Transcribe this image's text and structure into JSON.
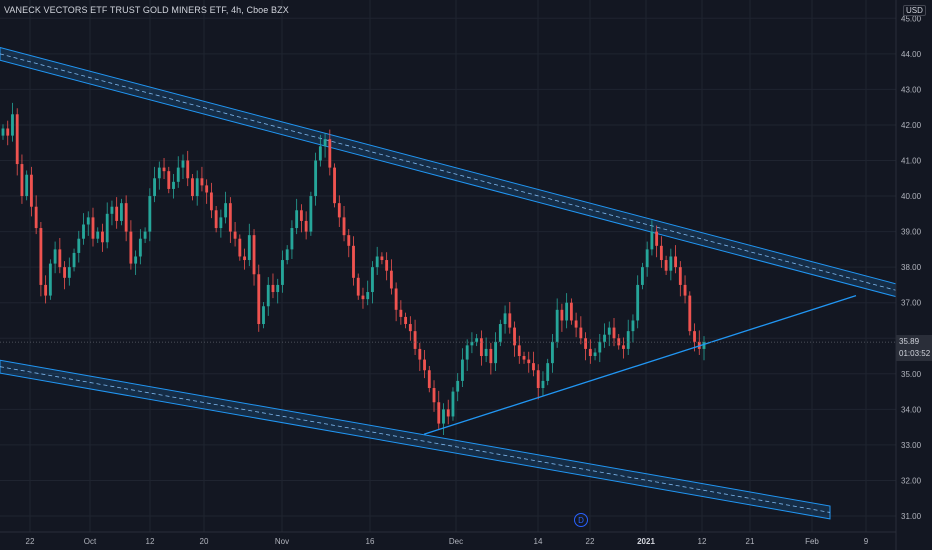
{
  "header": {
    "symbol_title": "VANECK VECTORS ETF TRUST GOLD MINERS ETF, 4h, Cboe BZX",
    "currency": "USD"
  },
  "colors": {
    "background": "#131722",
    "grid": "#1f2430",
    "up": "#26a69a",
    "down": "#ef5350",
    "trend": "#2196f3",
    "axis_text": "#b2b5be",
    "price_label_bg": "#2a2e39"
  },
  "chart_data": {
    "type": "candlestick",
    "title": "VANECK VECTORS ETF TRUST GOLD MINERS ETF, 4h, Cboe BZX",
    "ylim": [
      30.6,
      45.5
    ],
    "grid": true,
    "y_ticks": [
      "31.00",
      "32.00",
      "33.00",
      "34.00",
      "35.00",
      "36.00",
      "37.00",
      "38.00",
      "39.00",
      "40.00",
      "41.00",
      "42.00",
      "43.00",
      "44.00",
      "45.00"
    ],
    "x_tick_labels": [
      "22",
      "Oct",
      "12",
      "20",
      "Nov",
      "16",
      "Dec",
      "14",
      "22",
      "2021",
      "12",
      "21",
      "Feb",
      "9"
    ],
    "last_price": "35.89",
    "countdown": "01:03:52",
    "event_marker": "D",
    "channel_upper": {
      "start": [
        0,
        44.0
      ],
      "end": 896,
      "end_value": 37.35,
      "half_width": 0.18
    },
    "channel_lower": {
      "start": [
        0,
        35.2
      ],
      "end": 830,
      "end_value": 31.1,
      "half_width": 0.18
    },
    "support_line": {
      "start": [
        424,
        33.3
      ],
      "end": [
        856,
        37.2
      ]
    },
    "closes": [
      41.9,
      41.7,
      42.3,
      40.9,
      40.0,
      40.6,
      39.7,
      39.1,
      37.5,
      37.2,
      38.1,
      38.5,
      38.0,
      37.7,
      38.0,
      38.4,
      38.8,
      39.2,
      39.4,
      38.8,
      39.0,
      38.7,
      39.5,
      39.7,
      39.3,
      39.8,
      39.0,
      38.1,
      38.3,
      38.8,
      39.0,
      40.0,
      40.5,
      40.8,
      40.7,
      40.2,
      40.4,
      40.8,
      41.0,
      40.5,
      40.0,
      40.5,
      40.3,
      40.1,
      39.6,
      39.1,
      39.4,
      39.8,
      39.0,
      38.8,
      38.3,
      38.2,
      38.9,
      37.8,
      36.4,
      36.9,
      37.5,
      37.3,
      37.5,
      38.2,
      38.5,
      39.1,
      39.6,
      39.3,
      39.0,
      40.0,
      41.0,
      41.4,
      41.6,
      40.8,
      39.8,
      39.4,
      38.9,
      38.6,
      37.7,
      37.2,
      37.1,
      37.3,
      38.0,
      38.3,
      38.2,
      37.9,
      37.4,
      36.8,
      36.6,
      36.4,
      36.2,
      35.7,
      35.4,
      35.1,
      34.6,
      34.2,
      33.6,
      34.0,
      33.8,
      34.5,
      34.8,
      35.4,
      35.8,
      35.9,
      36.0,
      35.5,
      35.7,
      35.3,
      35.9,
      36.4,
      36.7,
      36.3,
      35.8,
      35.5,
      35.4,
      35.3,
      35.1,
      34.6,
      34.8,
      35.3,
      35.9,
      36.8,
      36.5,
      37.0,
      36.5,
      36.3,
      36.0,
      35.7,
      35.5,
      35.6,
      35.9,
      36.1,
      36.3,
      36.0,
      35.8,
      35.7,
      36.2,
      36.5,
      37.5,
      38.0,
      38.5,
      39.0,
      38.6,
      38.2,
      37.9,
      38.3,
      38.0,
      37.5,
      37.2,
      36.2,
      35.9,
      35.7,
      35.89
    ]
  }
}
